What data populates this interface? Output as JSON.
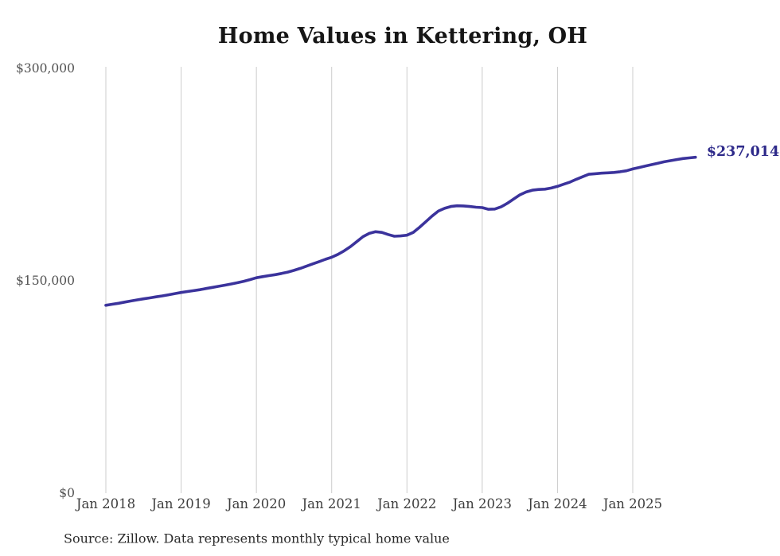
{
  "title": "Home Values in Kettering, OH",
  "source": "Source: Zillow. Data represents monthly typical home value",
  "annotation": {
    "text": "$237,014"
  },
  "colors": {
    "line": "#3b339c",
    "annotation_text": "#2e2a8a",
    "grid": "#cccccc",
    "y_axis_text": "#525252",
    "x_axis_text": "#3e3e3e",
    "title_text": "#161616",
    "source_text": "#2b2b2b",
    "background": "#ffffff"
  },
  "chart_data": {
    "type": "line",
    "title": "Home Values in Kettering, OH",
    "series_name": "Monthly typical home value (Zillow)",
    "legend": "none",
    "grid": "vertical-only",
    "ylim": [
      0,
      300000
    ],
    "y_tick_values": [
      0,
      150000,
      300000
    ],
    "y_tick_labels": [
      "$0",
      "$150,000",
      "$300,000"
    ],
    "x_tick_labels": [
      "Jan 2018",
      "Jan 2019",
      "Jan 2020",
      "Jan 2021",
      "Jan 2022",
      "Jan 2023",
      "Jan 2024",
      "Jan 2025"
    ],
    "x_tick_month_indices": [
      0,
      12,
      24,
      36,
      48,
      60,
      72,
      84
    ],
    "latest_value": 237014,
    "x": [
      "2018-01",
      "2018-02",
      "2018-03",
      "2018-04",
      "2018-05",
      "2018-06",
      "2018-07",
      "2018-08",
      "2018-09",
      "2018-10",
      "2018-11",
      "2018-12",
      "2019-01",
      "2019-02",
      "2019-03",
      "2019-04",
      "2019-05",
      "2019-06",
      "2019-07",
      "2019-08",
      "2019-09",
      "2019-10",
      "2019-11",
      "2019-12",
      "2020-01",
      "2020-02",
      "2020-03",
      "2020-04",
      "2020-05",
      "2020-06",
      "2020-07",
      "2020-08",
      "2020-09",
      "2020-10",
      "2020-11",
      "2020-12",
      "2021-01",
      "2021-02",
      "2021-03",
      "2021-04",
      "2021-05",
      "2021-06",
      "2021-07",
      "2021-08",
      "2021-09",
      "2021-10",
      "2021-11",
      "2021-12",
      "2022-01",
      "2022-02",
      "2022-03",
      "2022-04",
      "2022-05",
      "2022-06",
      "2022-07",
      "2022-08",
      "2022-09",
      "2022-10",
      "2022-11",
      "2022-12",
      "2023-01",
      "2023-02",
      "2023-03",
      "2023-04",
      "2023-05",
      "2023-06",
      "2023-07",
      "2023-08",
      "2023-09",
      "2023-10",
      "2023-11",
      "2023-12",
      "2024-01",
      "2024-02",
      "2024-03",
      "2024-04",
      "2024-05",
      "2024-06",
      "2024-07",
      "2024-08",
      "2024-09",
      "2024-10",
      "2024-11",
      "2024-12",
      "2025-01",
      "2025-02",
      "2025-03",
      "2025-04",
      "2025-05",
      "2025-06",
      "2025-07",
      "2025-08",
      "2025-09",
      "2025-10",
      "2025-11"
    ],
    "values": [
      132600,
      133300,
      134000,
      134800,
      135600,
      136400,
      137100,
      137800,
      138500,
      139200,
      140000,
      140800,
      141600,
      142300,
      142900,
      143600,
      144400,
      145200,
      146000,
      146800,
      147600,
      148500,
      149500,
      150700,
      152000,
      152800,
      153500,
      154200,
      155000,
      156000,
      157200,
      158600,
      160200,
      161800,
      163400,
      165000,
      166500,
      168500,
      171000,
      174000,
      177500,
      181000,
      183300,
      184500,
      184000,
      182500,
      181300,
      181500,
      182000,
      184000,
      187500,
      191500,
      195500,
      199000,
      201000,
      202300,
      202800,
      202700,
      202300,
      201800,
      201500,
      200300,
      200500,
      202000,
      204500,
      207500,
      210500,
      212500,
      213800,
      214300,
      214500,
      215300,
      216500,
      218000,
      219500,
      221500,
      223300,
      225000,
      225400,
      225800,
      226000,
      226300,
      226800,
      227500,
      228800,
      229800,
      230800,
      231800,
      232800,
      233800,
      234600,
      235400,
      236100,
      236600,
      237014
    ]
  }
}
